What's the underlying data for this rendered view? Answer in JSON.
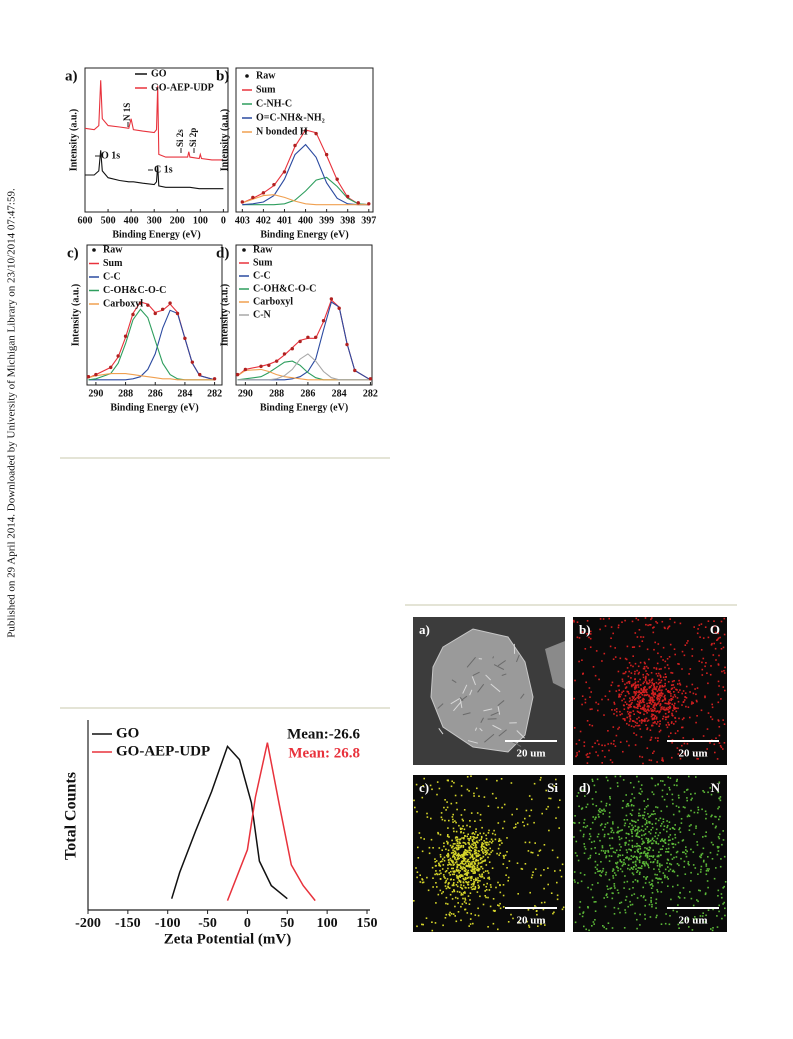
{
  "side_note": "Published on 29 April 2014. Downloaded by University of Michigan Library on 23/10/2014 07:47:59.",
  "chart_data": [
    {
      "type": "line",
      "panel_label": "a)",
      "xlabel": "Binding Energy (eV)",
      "ylabel": "Intensity (a.u.)",
      "x": [
        600,
        560,
        540,
        532,
        525,
        500,
        450,
        410,
        400,
        390,
        350,
        300,
        290,
        285,
        280,
        250,
        200,
        155,
        150,
        145,
        105,
        100,
        95,
        50,
        0
      ],
      "series": [
        {
          "name": "GO",
          "color": "#111111",
          "values": [
            27,
            27,
            30,
            45,
            30,
            25,
            23,
            22,
            22,
            22,
            21,
            20,
            22,
            34,
            19,
            18,
            18,
            18,
            18,
            18,
            17,
            17,
            17,
            17,
            17
          ]
        },
        {
          "name": "GO-AEP-UDP",
          "color": "#e8323c",
          "values": [
            61,
            60,
            63,
            96,
            68,
            63,
            62,
            61,
            68,
            60,
            59,
            58,
            60,
            92,
            42,
            40,
            40,
            40,
            44,
            40,
            39,
            42,
            39,
            38,
            38
          ]
        }
      ],
      "xlim": [
        600,
        -20
      ],
      "ylim": [
        0,
        105
      ],
      "xticks": [
        600,
        500,
        400,
        300,
        200,
        100,
        0
      ],
      "annotations": [
        "N 1S",
        "Si 2s",
        "Si 2p",
        "O 1s",
        "C 1s"
      ]
    },
    {
      "type": "line",
      "panel_label": "b)",
      "xlabel": "Binding Energy (eV)",
      "ylabel": "Intensity (a.u.)",
      "x": [
        403,
        402.5,
        402,
        401.5,
        401,
        400.5,
        400,
        399.5,
        399,
        398.5,
        398,
        397.5,
        397
      ],
      "series": [
        {
          "name": "Raw",
          "mode": "markers",
          "color": "#b02020",
          "values": [
            3,
            8,
            13,
            22,
            36,
            65,
            81,
            78,
            55,
            28,
            9,
            2,
            1
          ]
        },
        {
          "name": "Sum",
          "color": "#e8323c",
          "values": [
            2,
            7,
            13,
            21,
            37,
            64,
            82,
            79,
            54,
            27,
            8,
            1,
            0
          ]
        },
        {
          "name": "C-NH-C",
          "color": "#2e9e5e",
          "values": [
            0,
            0,
            0,
            0,
            1,
            5,
            15,
            27,
            30,
            20,
            7,
            1,
            0
          ]
        },
        {
          "name": "O=C-NH&-NH₂",
          "color": "#2b4aa0",
          "values": [
            0,
            1,
            3,
            10,
            28,
            55,
            66,
            52,
            24,
            7,
            1,
            0,
            0
          ]
        },
        {
          "name": "N bonded H",
          "color": "#f0a050",
          "values": [
            2,
            6,
            10,
            11,
            8,
            4,
            1,
            0,
            0,
            0,
            0,
            0,
            0
          ]
        }
      ],
      "xlim": [
        403.3,
        396.8
      ],
      "ylim": [
        -8,
        150
      ],
      "xticks": [
        403,
        402,
        401,
        400,
        399,
        398,
        397
      ]
    },
    {
      "type": "line",
      "panel_label": "c)",
      "xlabel": "Binding Energy (eV)",
      "ylabel": "Intensity (a.u.)",
      "x": [
        290.5,
        290,
        289,
        288.5,
        288,
        287.5,
        287,
        286.5,
        286,
        285.5,
        285,
        284.5,
        284,
        283.5,
        283,
        282
      ],
      "series": [
        {
          "name": "Raw",
          "mode": "markers",
          "color": "#b02020",
          "values": [
            3,
            5,
            12,
            23,
            42,
            63,
            74,
            72,
            64,
            68,
            74,
            64,
            40,
            17,
            5,
            1
          ]
        },
        {
          "name": "Sum",
          "color": "#e8323c",
          "values": [
            2,
            5,
            12,
            22,
            41,
            64,
            75,
            73,
            65,
            67,
            73,
            65,
            40,
            16,
            4,
            0
          ]
        },
        {
          "name": "C-C",
          "color": "#2b4aa0",
          "values": [
            0,
            0,
            0,
            0,
            0,
            1,
            3,
            10,
            25,
            50,
            67,
            64,
            40,
            16,
            4,
            0
          ]
        },
        {
          "name": "C-OH&C-O-C",
          "color": "#2e9e5e",
          "values": [
            0,
            1,
            6,
            16,
            35,
            58,
            68,
            60,
            38,
            16,
            5,
            1,
            0,
            0,
            0,
            0
          ]
        },
        {
          "name": "Carboxyl",
          "color": "#f0a050",
          "values": [
            2,
            4,
            6,
            6,
            6,
            5,
            4,
            3,
            2,
            1,
            1,
            0,
            0,
            0,
            0,
            0
          ]
        }
      ],
      "xlim": [
        290.6,
        281.5
      ],
      "ylim": [
        -5,
        130
      ],
      "xticks": [
        290,
        288,
        286,
        284,
        282
      ]
    },
    {
      "type": "line",
      "panel_label": "d)",
      "xlabel": "Binding Energy (eV)",
      "ylabel": "Intensity (a.u.)",
      "x": [
        290.5,
        290,
        289,
        288.5,
        288,
        287.5,
        287,
        286.5,
        286,
        285.5,
        285,
        284.5,
        284,
        283.5,
        283,
        282
      ],
      "series": [
        {
          "name": "Raw",
          "mode": "markers",
          "color": "#b02020",
          "values": [
            5,
            10,
            13,
            14,
            18,
            25,
            30,
            37,
            41,
            41,
            57,
            78,
            69,
            34,
            9,
            1
          ]
        },
        {
          "name": "Sum",
          "color": "#e8323c",
          "values": [
            4,
            10,
            13,
            15,
            18,
            24,
            31,
            38,
            40,
            40,
            56,
            77,
            70,
            35,
            9,
            0
          ]
        },
        {
          "name": "C-C",
          "color": "#2b4aa0",
          "values": [
            0,
            0,
            0,
            0,
            0,
            0,
            1,
            3,
            8,
            20,
            48,
            75,
            70,
            35,
            9,
            0
          ]
        },
        {
          "name": "C-OH&C-O-C",
          "color": "#2e9e5e",
          "values": [
            0,
            1,
            3,
            7,
            12,
            17,
            18,
            14,
            7,
            2,
            0,
            0,
            0,
            0,
            0,
            0
          ]
        },
        {
          "name": "Carboxyl",
          "color": "#f0a050",
          "values": [
            4,
            9,
            10,
            8,
            5,
            3,
            2,
            1,
            0,
            0,
            0,
            0,
            0,
            0,
            0,
            0
          ]
        },
        {
          "name": "C-N",
          "color": "#a8a8a8",
          "values": [
            0,
            0,
            0,
            0,
            1,
            4,
            10,
            20,
            25,
            18,
            8,
            2,
            0,
            0,
            0,
            0
          ]
        }
      ],
      "xlim": [
        290.6,
        281.9
      ],
      "ylim": [
        -5,
        130
      ],
      "xticks": [
        290,
        288,
        286,
        284,
        282
      ]
    },
    {
      "type": "line",
      "xlabel": "Zeta Potential (mV)",
      "ylabel": "Total Counts",
      "series": [
        {
          "name": "GO",
          "color": "#111111",
          "x": [
            -95,
            -85,
            -65,
            -45,
            -25,
            -10,
            5,
            15,
            30,
            50
          ],
          "values": [
            6,
            20,
            42,
            63,
            87,
            80,
            57,
            26,
            13,
            6
          ]
        },
        {
          "name": "GO-AEP-UDP",
          "color": "#e8323c",
          "x": [
            -25,
            0,
            10,
            25,
            40,
            55,
            70,
            85
          ],
          "values": [
            5,
            32,
            60,
            89,
            56,
            24,
            13,
            5
          ]
        }
      ],
      "xlim": [
        -200,
        150
      ],
      "ylim": [
        0,
        100
      ],
      "xticks": [
        -200,
        -150,
        -100,
        -50,
        0,
        50,
        100,
        150
      ],
      "annotations": [
        {
          "text": "Mean:-26.6",
          "color": "#111111"
        },
        {
          "text": "Mean: 26.8",
          "color": "#e8323c"
        }
      ]
    }
  ],
  "eds_images": [
    {
      "label": "a)",
      "scale_bar": "20 um"
    },
    {
      "label": "b)",
      "element": "O",
      "scale_bar": "20 um",
      "color": "#d42020"
    },
    {
      "label": "c)",
      "element": "Si",
      "scale_bar": "20 um",
      "color": "#d6d62a"
    },
    {
      "label": "d)",
      "element": "N",
      "scale_bar": "20 um",
      "color": "#5cb838"
    }
  ]
}
